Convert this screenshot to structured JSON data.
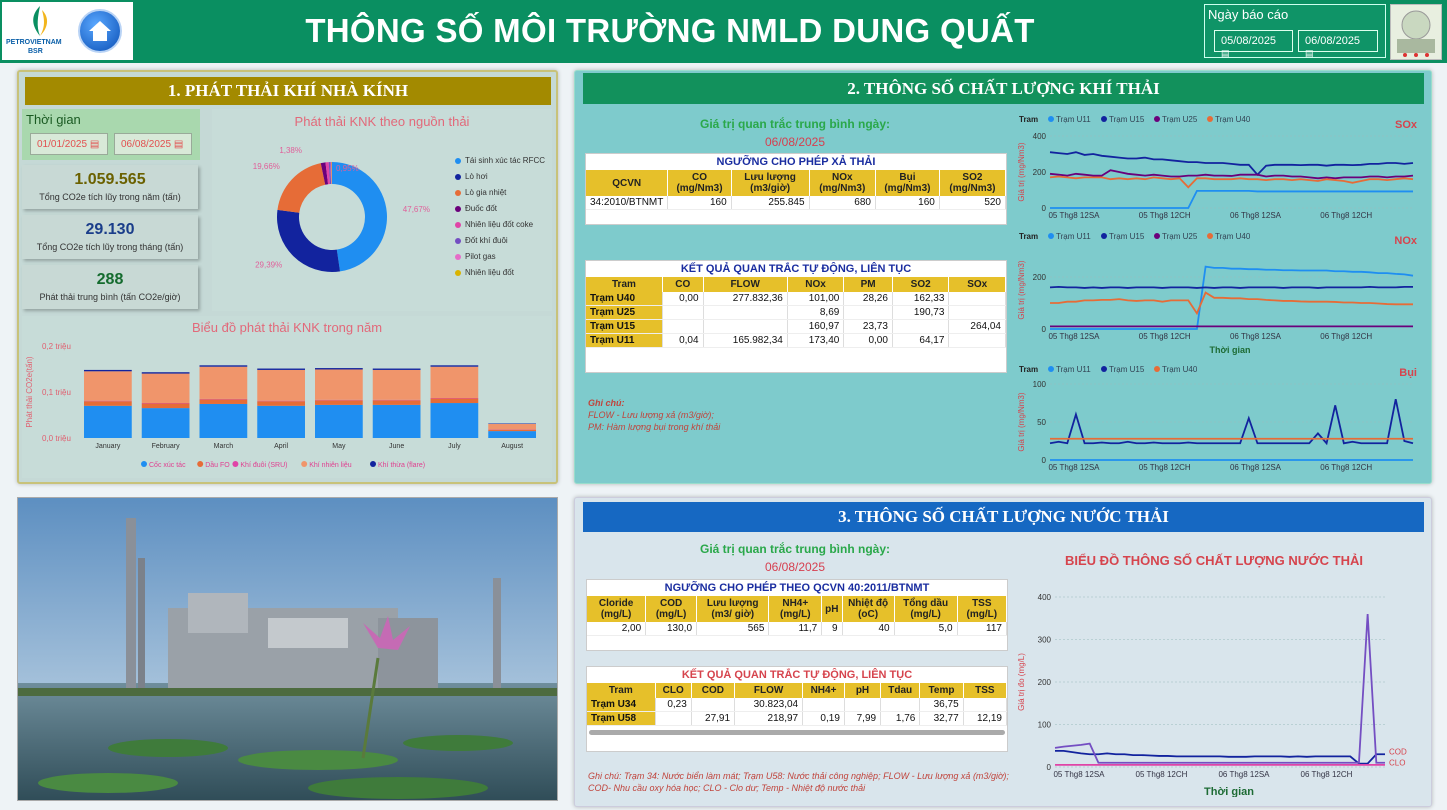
{
  "header": {
    "logo_text_1": "PETROVIETNAM",
    "logo_text_2": "BSR",
    "title": "THÔNG SỐ MÔI TRƯỜNG NMLD DUNG QUẤT",
    "report_date_label": "Ngày báo cáo",
    "date_from": "05/08/2025",
    "date_to": "06/08/2025"
  },
  "p1": {
    "title": "1. PHÁT THẢI KHÍ NHÀ KÍNH",
    "time_label": "Thời gian",
    "date_from": "01/01/2025",
    "date_to": "06/08/2025",
    "kpis": [
      {
        "value": "1.059.565",
        "label": "Tổng CO2e tích lũy trong năm (tấn)",
        "color": "#6b6100"
      },
      {
        "value": "29.130",
        "label": "Tổng CO2e tích lũy trong tháng (tấn)",
        "color": "#1a3d8a"
      },
      {
        "value": "288",
        "label": "Phát thải trung bình (tấn CO2e/giờ)",
        "color": "#146b2e"
      }
    ],
    "donut_title": "Phát thải KNK theo nguồn thải",
    "bar_title": "Biểu đồ phát thải KNK trong năm",
    "bar_ylabel": "Phát thải CO2e(tấn)"
  },
  "donut_data": {
    "type": "pie",
    "slices": [
      {
        "name": "Tái sinh xúc tác RFCC",
        "value": 47.67,
        "label": "47,67%",
        "color": "#1f8ef1"
      },
      {
        "name": "Lò hơi",
        "value": 29.39,
        "label": "29,39%",
        "color": "#12239e"
      },
      {
        "name": "Lò gia nhiệt",
        "value": 19.66,
        "label": "19,66%",
        "color": "#e66c37"
      },
      {
        "name": "Đuốc đốt",
        "value": 1.38,
        "label": "1,38%",
        "color": "#6b007b"
      },
      {
        "name": "Nhiên liệu đốt coke",
        "value": 0.95,
        "label": "0,95%",
        "color": "#e044a7"
      },
      {
        "name": "Đốt khí đuôi",
        "value": 0.5,
        "label": "",
        "color": "#744ec2"
      },
      {
        "name": "Pilot gas",
        "value": 0.3,
        "label": "",
        "color": "#e66cc8"
      },
      {
        "name": "Nhiên liệu đốt",
        "value": 0.15,
        "label": "",
        "color": "#d9b300"
      }
    ]
  },
  "chart_data": [
    {
      "type": "bar",
      "title": "Biểu đồ phát thải KNK trong năm",
      "ylabel": "Phát thải CO2e(tấn)",
      "ylim": [
        0,
        200000
      ],
      "yticks": [
        "0,0 triệu",
        "0,1 triệu",
        "0,2 triệu"
      ],
      "categories": [
        "January",
        "February",
        "March",
        "April",
        "May",
        "June",
        "July",
        "August"
      ],
      "series": [
        {
          "name": "Cốc xúc tác",
          "color": "#1f8ef1",
          "values": [
            70000,
            65000,
            74000,
            70000,
            72000,
            72000,
            76000,
            15000
          ]
        },
        {
          "name": "Dầu FO",
          "color": "#e66c37",
          "values": [
            10000,
            10000,
            10000,
            10000,
            10000,
            10000,
            10000,
            3000
          ]
        },
        {
          "name": "Khí đuôi (SRU)",
          "color": "#e044a7",
          "values": [
            1000,
            1000,
            1000,
            1000,
            1000,
            1000,
            1000,
            500
          ]
        },
        {
          "name": "Khí nhiên liệu",
          "color": "#f0956b",
          "values": [
            64000,
            64000,
            70000,
            67000,
            66000,
            65000,
            68000,
            12000
          ]
        },
        {
          "name": "Khí thừa (flare)",
          "color": "#12239e",
          "values": [
            3000,
            3000,
            3000,
            3000,
            3000,
            3000,
            3000,
            1000
          ]
        }
      ]
    },
    {
      "type": "line",
      "title": "SOx",
      "ylim": [
        0,
        400
      ],
      "yticks": [
        "0",
        "200",
        "400"
      ],
      "ylabel": "Giá trị (mg/Nm3)",
      "xticks": [
        "05 Thg8 12SA",
        "05 Thg8 12CH",
        "06 Thg8 12SA",
        "06 Thg8 12CH"
      ],
      "series": [
        {
          "name": "Trạm U11",
          "color": "#1f8ef1",
          "values": [
            0,
            0,
            0,
            0,
            0,
            0,
            0,
            0,
            0,
            0,
            0,
            0,
            0,
            0,
            0,
            0,
            0,
            95,
            95,
            95,
            95,
            95,
            95,
            95,
            92,
            92,
            92,
            92,
            92,
            92,
            92,
            92,
            92,
            92,
            92,
            92,
            92,
            92,
            92,
            92,
            92,
            92,
            92
          ]
        },
        {
          "name": "Trạm U15",
          "color": "#12239e",
          "values": [
            310,
            305,
            300,
            310,
            295,
            300,
            290,
            285,
            280,
            275,
            275,
            280,
            270,
            270,
            265,
            260,
            255,
            255,
            250,
            250,
            250,
            245,
            240,
            240,
            185,
            235,
            240,
            240,
            240,
            238,
            240,
            240,
            235,
            240,
            240,
            238,
            240,
            245,
            245,
            250,
            250,
            245,
            250
          ]
        },
        {
          "name": "Trạm U25",
          "color": "#6b007b",
          "values": [
            190,
            185,
            180,
            190,
            185,
            180,
            180,
            210,
            200,
            190,
            185,
            180,
            185,
            180,
            175,
            175,
            180,
            180,
            185,
            180,
            180,
            178,
            185,
            185,
            185,
            175,
            180,
            180,
            175,
            175,
            170,
            165,
            170,
            165,
            170,
            170,
            170,
            175,
            175,
            170,
            175,
            175,
            180
          ]
        },
        {
          "name": "Trạm U40",
          "color": "#e66c37",
          "values": [
            170,
            175,
            170,
            165,
            170,
            170,
            170,
            160,
            165,
            160,
            165,
            160,
            170,
            165,
            160,
            165,
            115,
            165,
            165,
            160,
            160,
            160,
            165,
            160,
            160,
            155,
            160,
            160,
            155,
            160,
            155,
            150,
            160,
            155,
            150,
            140,
            150,
            160,
            160,
            155,
            160,
            165,
            160
          ]
        }
      ]
    },
    {
      "type": "line",
      "title": "NOx",
      "ylim": [
        0,
        300
      ],
      "yticks": [
        "0",
        "200"
      ],
      "ylabel": "Giá trị (mg/Nm3)",
      "xlabel": "Thời gian",
      "xticks": [
        "05 Thg8 12SA",
        "05 Thg8 12CH",
        "06 Thg8 12SA",
        "06 Thg8 12CH"
      ],
      "series": [
        {
          "name": "Trạm U11",
          "color": "#1f8ef1",
          "values": [
            0,
            0,
            0,
            0,
            0,
            0,
            0,
            0,
            0,
            0,
            0,
            0,
            0,
            0,
            0,
            0,
            0,
            0,
            240,
            235,
            235,
            232,
            232,
            230,
            230,
            228,
            228,
            226,
            226,
            225,
            225,
            225,
            225,
            222,
            222,
            220,
            220,
            218,
            215,
            215,
            212,
            210,
            205
          ]
        },
        {
          "name": "Trạm U15",
          "color": "#12239e",
          "values": [
            160,
            162,
            160,
            160,
            158,
            160,
            158,
            160,
            160,
            158,
            160,
            160,
            160,
            158,
            160,
            160,
            160,
            158,
            160,
            158,
            160,
            160,
            158,
            160,
            160,
            160,
            160,
            158,
            160,
            160,
            160,
            158,
            160,
            160,
            160,
            160,
            160,
            162,
            160,
            160,
            160,
            162,
            162
          ]
        },
        {
          "name": "Trạm U25",
          "color": "#6b007b",
          "values": [
            10,
            10,
            10,
            10,
            10,
            10,
            10,
            10,
            10,
            10,
            10,
            10,
            10,
            10,
            10,
            10,
            10,
            10,
            10,
            10,
            10,
            10,
            10,
            10,
            10,
            10,
            10,
            10,
            10,
            10,
            10,
            10,
            10,
            10,
            10,
            10,
            10,
            10,
            10,
            10,
            10,
            10,
            10
          ]
        },
        {
          "name": "Trạm U40",
          "color": "#e66c37",
          "values": [
            100,
            100,
            105,
            105,
            110,
            110,
            112,
            112,
            115,
            110,
            108,
            110,
            110,
            105,
            110,
            110,
            110,
            60,
            140,
            120,
            120,
            118,
            118,
            115,
            115,
            112,
            110,
            108,
            108,
            106,
            105,
            105,
            105,
            104,
            102,
            102,
            100,
            100,
            98,
            96,
            95,
            95,
            95
          ]
        }
      ]
    },
    {
      "type": "line",
      "title": "Bụi",
      "ylim": [
        0,
        100
      ],
      "yticks": [
        "0",
        "50",
        "100"
      ],
      "ylabel": "Giá trị (mg/Nm3)",
      "xticks": [
        "05 Thg8 12SA",
        "05 Thg8 12CH",
        "06 Thg8 12SA",
        "06 Thg8 12CH"
      ],
      "series": [
        {
          "name": "Trạm U11",
          "color": "#1f8ef1",
          "values": [
            0,
            0,
            0,
            0,
            0,
            0,
            0,
            0,
            0,
            0,
            0,
            0,
            0,
            0,
            0,
            0,
            0,
            0,
            0,
            0,
            0,
            0,
            0,
            0,
            0,
            0,
            0,
            0,
            0,
            0,
            0,
            0,
            0,
            0,
            0,
            0,
            0,
            0,
            0,
            0,
            0,
            0,
            0
          ]
        },
        {
          "name": "Trạm U15",
          "color": "#12239e",
          "values": [
            22,
            24,
            22,
            60,
            22,
            22,
            23,
            22,
            22,
            24,
            22,
            22,
            23,
            22,
            22,
            22,
            23,
            22,
            22,
            22,
            22,
            22,
            22,
            55,
            22,
            22,
            22,
            22,
            22,
            22,
            22,
            35,
            22,
            72,
            22,
            24,
            22,
            22,
            22,
            22,
            80,
            25,
            22
          ]
        },
        {
          "name": "Trạm U40",
          "color": "#e66c37",
          "values": [
            28,
            28,
            28,
            28,
            28,
            28,
            28,
            28,
            28,
            28,
            28,
            28,
            28,
            28,
            28,
            28,
            28,
            28,
            28,
            28,
            28,
            28,
            28,
            28,
            28,
            28,
            28,
            28,
            28,
            28,
            28,
            28,
            28,
            28,
            28,
            28,
            28,
            28,
            28,
            28,
            28,
            28,
            28
          ]
        }
      ]
    },
    {
      "type": "line",
      "title": "BIỂU ĐỒ THÔNG SỐ CHẤT LƯỢNG NƯỚC THẢI",
      "ylabel": "Giá trị đo (mg/L)",
      "xlabel": "Thời gian",
      "ylim": [
        0,
        400
      ],
      "yticks": [
        "0",
        "100",
        "200",
        "300",
        "400"
      ],
      "xticks": [
        "05 Thg8 12SA",
        "05 Thg8 12CH",
        "06 Thg8 12SA",
        "06 Thg8 12CH"
      ],
      "series": [
        {
          "name": "COD",
          "color": "#12239e",
          "values": [
            38,
            38,
            35,
            32,
            30,
            30,
            32,
            30,
            30,
            28,
            28,
            27,
            26,
            26,
            25,
            25,
            25,
            25,
            25,
            25,
            24,
            24,
            24,
            25,
            25,
            25,
            25,
            24,
            25,
            24,
            25,
            25,
            25,
            25,
            25,
            8,
            8,
            30,
            30
          ]
        },
        {
          "name": "CLO",
          "color": "#744ec2",
          "values": [
            45,
            48,
            50,
            52,
            55,
            10,
            10,
            10,
            10,
            10,
            10,
            10,
            10,
            10,
            10,
            10,
            10,
            10,
            10,
            10,
            10,
            10,
            10,
            10,
            10,
            10,
            10,
            10,
            10,
            10,
            10,
            10,
            10,
            10,
            10,
            10,
            360,
            10,
            10
          ]
        },
        {
          "name": "",
          "color": "#e044a7",
          "values": [
            5,
            5,
            5,
            5,
            5,
            5,
            5,
            5,
            5,
            5,
            5,
            5,
            5,
            5,
            5,
            5,
            5,
            5,
            5,
            5,
            5,
            5,
            5,
            5,
            5,
            5,
            5,
            5,
            5,
            5,
            5,
            5,
            5,
            5,
            5,
            5,
            5,
            5,
            5
          ]
        }
      ]
    }
  ],
  "p2": {
    "title": "2. THÔNG SỐ CHẤT LƯỢNG KHÍ THẢI",
    "avg_label": "Giá trị quan trắc trung bình ngày:",
    "avg_date": "06/08/2025",
    "limit_title": "NGƯỠNG CHO PHÉP XẢ THẢI",
    "limit_headers": [
      "QCVN",
      "CO (mg/Nm3)",
      "Lưu lượng (m3/giờ)",
      "NOx (mg/Nm3)",
      "Bụi (mg/Nm3)",
      "SO2 (mg/Nm3)"
    ],
    "limit_row": [
      "34:2010/BTNMT",
      "160",
      "255.845",
      "680",
      "160",
      "520"
    ],
    "result_title": "KẾT QUẢ QUAN TRẮC TỰ ĐỘNG, LIÊN TỤC",
    "result_headers": [
      "Tram",
      "CO",
      "FLOW",
      "NOx",
      "PM",
      "SO2",
      "SOx"
    ],
    "result_rows": [
      [
        "Trạm U40",
        "0,00",
        "277.832,36",
        "101,00",
        "28,26",
        "162,33",
        ""
      ],
      [
        "Trạm U25",
        "",
        "",
        "8,69",
        "",
        "190,73",
        ""
      ],
      [
        "Trạm U15",
        "",
        "",
        "160,97",
        "23,73",
        "",
        "264,04"
      ],
      [
        "Trạm U11",
        "0,04",
        "165.982,34",
        "173,40",
        "0,00",
        "64,17",
        ""
      ]
    ],
    "note_title": "Ghi chú:",
    "note_1": "FLOW - Lưu lượng xả (m3/giờ);",
    "note_2": "PM: Hàm lượng bụi trong khí thải",
    "legend_label": "Tram"
  },
  "p3": {
    "title": "3. THÔNG SỐ CHẤT LƯỢNG NƯỚC THẢI",
    "avg_label": "Giá trị quan trắc trung bình ngày:",
    "avg_date": "06/08/2025",
    "limit_title": "NGƯỠNG CHO PHÉP THEO QCVN 40:2011/BTNMT",
    "limit_headers": [
      "Cloride (mg/L)",
      "COD (mg/L)",
      "Lưu lượng (m3/ giờ)",
      "NH4+ (mg/L)",
      "pH",
      "Nhiệt độ (oC)",
      "Tổng dầu (mg/L)",
      "TSS (mg/L)"
    ],
    "limit_row": [
      "2,00",
      "130,0",
      "565",
      "11,7",
      "9",
      "40",
      "5,0",
      "117"
    ],
    "result_title": "KẾT QUẢ QUAN TRẮC TỰ ĐỘNG, LIÊN TỤC",
    "result_headers": [
      "Tram",
      "CLO",
      "COD",
      "FLOW",
      "NH4+",
      "pH",
      "Tdau",
      "Temp",
      "TSS"
    ],
    "result_rows": [
      [
        "Trạm U34",
        "0,23",
        "",
        "30.823,04",
        "",
        "",
        "",
        "36,75",
        ""
      ],
      [
        "Trạm U58",
        "",
        "27,91",
        "218,97",
        "0,19",
        "7,99",
        "1,76",
        "32,77",
        "12,19"
      ]
    ],
    "note": "Ghi chú:  Trạm 34: Nước biển làm mát; Trạm U58: Nước thải công nghiệp; FLOW - Lưu lượng xả (m3/giờ);  COD- Nhu cầu oxy hóa học; CLO - Clo dư; Temp - Nhiệt độ nước thải",
    "legend_cod": "COD",
    "legend_clo": "CLO"
  }
}
